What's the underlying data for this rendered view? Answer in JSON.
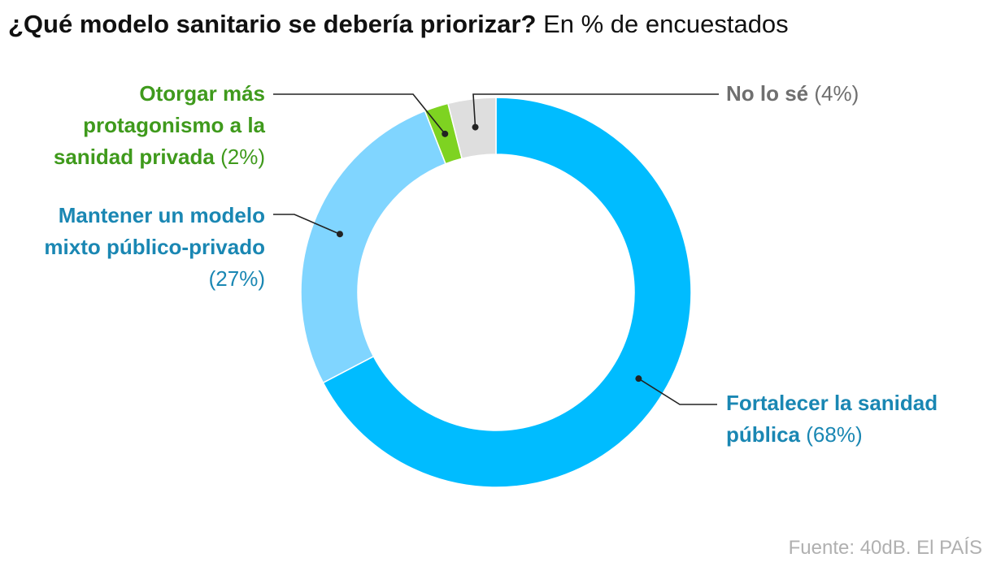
{
  "title": {
    "main": "¿Qué modelo sanitario se debería priorizar?",
    "sub": "En % de encuestados"
  },
  "source": "Fuente: 40dB. El PAÍS",
  "chart_data": {
    "type": "pie",
    "variant": "donut",
    "unit": "%",
    "slices": [
      {
        "key": "publica",
        "label": "Fortalecer la sanidad pública",
        "label_lines": [
          "Fortalecer la sanidad",
          "pública"
        ],
        "value": 68,
        "value_label": "(68%)",
        "color": "#00bcff",
        "label_color": "#1a87b3"
      },
      {
        "key": "mixto",
        "label": "Mantener un modelo mixto público-privado",
        "label_lines": [
          "Mantener un modelo",
          "mixto público-privado"
        ],
        "value": 27,
        "value_label": "(27%)",
        "color": "#80d5ff",
        "label_color": "#1a87b3"
      },
      {
        "key": "privada",
        "label": "Otorgar más protagonismo a la sanidad privada",
        "label_lines": [
          "Otorgar más",
          "protagonismo a la",
          "sanidad privada"
        ],
        "value": 2,
        "value_label": "(2%)",
        "color": "#7ed321",
        "label_color": "#3f9a1c"
      },
      {
        "key": "nose",
        "label": "No lo sé",
        "label_lines": [
          "No lo sé"
        ],
        "value": 4,
        "value_label": "(4%)",
        "color": "#dedede",
        "label_color": "#6f6f6f"
      }
    ]
  }
}
